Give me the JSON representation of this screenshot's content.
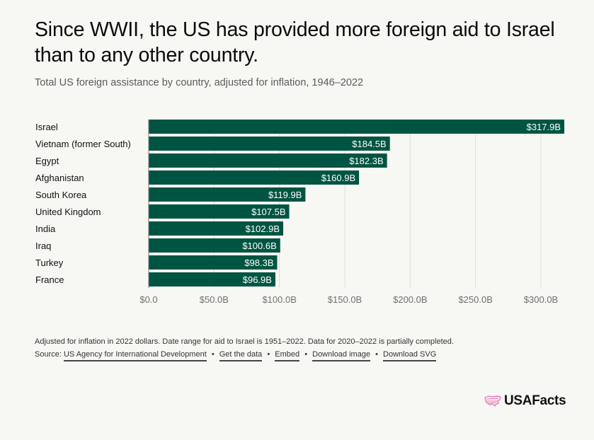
{
  "header": {
    "title": "Since WWII, the US has provided more foreign aid to Israel than to any other country.",
    "subtitle": "Total US foreign assistance by country, adjusted for inflation, 1946–2022"
  },
  "chart_data": {
    "type": "bar",
    "orientation": "horizontal",
    "title": "Since WWII, the US has provided more foreign aid to Israel than to any other country.",
    "subtitle": "Total US foreign assistance by country, adjusted for inflation, 1946–2022",
    "xlabel": "",
    "ylabel": "",
    "unit": "billions USD (2022 dollars)",
    "categories": [
      "Israel",
      "Vietnam (former South)",
      "Egypt",
      "Afghanistan",
      "South Korea",
      "United Kingdom",
      "India",
      "Iraq",
      "Turkey",
      "France"
    ],
    "values": [
      317.9,
      184.5,
      182.3,
      160.9,
      119.9,
      107.5,
      102.9,
      100.6,
      98.3,
      96.9
    ],
    "value_labels": [
      "$317.9B",
      "$184.5B",
      "$182.3B",
      "$160.9B",
      "$119.9B",
      "$107.5B",
      "$102.9B",
      "$100.6B",
      "$98.3B",
      "$96.9B"
    ],
    "xlim": [
      0,
      317.9
    ],
    "xticks": [
      0,
      50,
      100,
      150,
      200,
      250,
      300
    ],
    "xtick_labels": [
      "$0.0",
      "$50.0B",
      "$100.0B",
      "$150.0B",
      "$200.0B",
      "$250.0B",
      "$300.0B"
    ],
    "grid": true,
    "legend": "none",
    "bar_color": "#005542"
  },
  "footer": {
    "note": "Adjusted for inflation in 2022 dollars. Date range for aid to Israel is 1951–2022. Data for 2020–2022 is partially completed.",
    "source_prefix": "Source:",
    "links": [
      "US Agency for International Development",
      "Get the data",
      "Embed",
      "Download image",
      "Download SVG"
    ],
    "separator": "•"
  },
  "brand": {
    "name": "USAFacts",
    "logo_icon": "us-map-icon",
    "logo_color": "#e96bb0"
  }
}
